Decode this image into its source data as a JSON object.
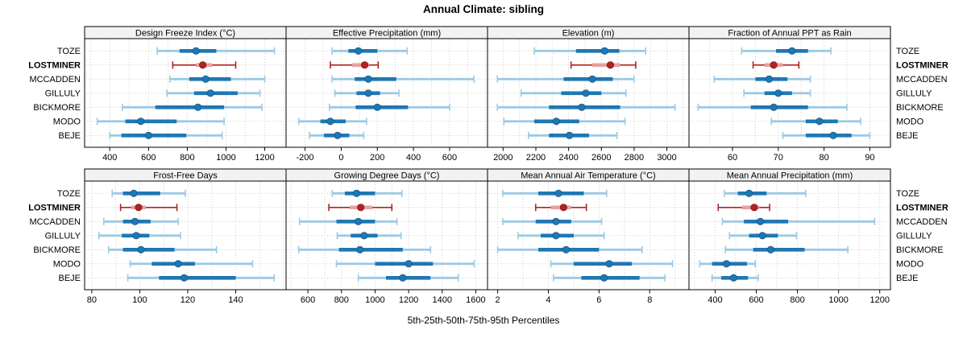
{
  "chart_data": {
    "type": "trellis-errorbar",
    "title": "Annual Climate: sibling",
    "xlabel": "5th-25th-50th-75th-95th Percentiles",
    "percentiles": [
      5,
      25,
      50,
      75,
      95
    ],
    "sites": [
      "TOZE",
      "LOSTMINER",
      "MCCADDEN",
      "GILLULY",
      "BICKMORE",
      "MODO",
      "BEJE"
    ],
    "highlight_site": "LOSTMINER",
    "grid": true,
    "layout": {
      "rows": 2,
      "cols": 4
    },
    "colors": {
      "point": "#1f77b4",
      "band": "#1f77b4",
      "whisker": "#9dc9e3",
      "point_edge": "#155a8a",
      "highlight_point": "#b22222",
      "highlight_band": "#e8a0a0",
      "highlight_whisker": "#b22222",
      "highlight_point_edge": "#7f1a1a",
      "strip_bg": "#f2f2f2",
      "grid": "#c9c9c9",
      "border": "#000000",
      "text": "#000000"
    },
    "panels": [
      {
        "title": "Design Freeze Index (°C)",
        "xlim": [
          270,
          1310
        ],
        "ticks": [
          400,
          600,
          800,
          1000,
          1200
        ],
        "values": {
          "TOZE": [
            645,
            760,
            845,
            950,
            1250
          ],
          "LOSTMINER": [
            725,
            845,
            880,
            930,
            1050
          ],
          "MCCADDEN": [
            710,
            810,
            895,
            1025,
            1200
          ],
          "GILLULY": [
            695,
            835,
            920,
            1060,
            1175
          ],
          "BICKMORE": [
            465,
            635,
            855,
            990,
            1185
          ],
          "MODO": [
            335,
            480,
            560,
            745,
            990
          ],
          "BEJE": [
            400,
            460,
            600,
            795,
            980
          ]
        }
      },
      {
        "title": "Effective Precipitation (mm)",
        "xlim": [
          -305,
          810
        ],
        "ticks": [
          -200,
          0,
          200,
          400,
          600
        ],
        "values": {
          "TOZE": [
            -50,
            40,
            95,
            200,
            365
          ],
          "LOSTMINER": [
            -60,
            60,
            130,
            155,
            205
          ],
          "MCCADDEN": [
            -50,
            75,
            150,
            305,
            735
          ],
          "GILLULY": [
            -35,
            85,
            150,
            215,
            320
          ],
          "BICKMORE": [
            -65,
            80,
            200,
            370,
            600
          ],
          "MODO": [
            -235,
            -115,
            -60,
            25,
            140
          ],
          "BEJE": [
            -175,
            -95,
            -20,
            45,
            125
          ]
        }
      },
      {
        "title": "Elevation (m)",
        "xlim": [
          1905,
          3135
        ],
        "ticks": [
          2000,
          2200,
          2400,
          2600,
          2800,
          3000
        ],
        "values": {
          "TOZE": [
            2190,
            2445,
            2620,
            2710,
            2870
          ],
          "LOSTMINER": [
            2415,
            2545,
            2655,
            2715,
            2810
          ],
          "MCCADDEN": [
            1965,
            2370,
            2545,
            2670,
            2800
          ],
          "GILLULY": [
            2110,
            2355,
            2505,
            2600,
            2750
          ],
          "BICKMORE": [
            1965,
            2280,
            2480,
            2715,
            3050
          ],
          "MODO": [
            2005,
            2190,
            2325,
            2465,
            2745
          ],
          "BEJE": [
            2155,
            2280,
            2405,
            2525,
            2695
          ]
        }
      },
      {
        "title": "Fraction of Annual PPT as Rain",
        "xlim": [
          50.5,
          94.5
        ],
        "ticks": [
          60,
          70,
          80,
          90
        ],
        "values": {
          "TOZE": [
            62,
            69.5,
            73,
            76.5,
            81.5
          ],
          "LOSTMINER": [
            64.5,
            67,
            69,
            71,
            74.5
          ],
          "MCCADDEN": [
            56,
            65,
            68,
            72,
            77
          ],
          "GILLULY": [
            62.5,
            67,
            70,
            73,
            77
          ],
          "BICKMORE": [
            52.5,
            64,
            69,
            76.5,
            85
          ],
          "MODO": [
            68.5,
            76,
            79,
            83,
            88
          ],
          "BEJE": [
            71,
            76,
            82,
            86,
            90
          ]
        }
      },
      {
        "title": "Frost-Free Days",
        "xlim": [
          77,
          161
        ],
        "ticks": [
          80,
          100,
          120,
          140
        ],
        "values": {
          "TOZE": [
            88.5,
            93,
            97.5,
            108.5,
            119
          ],
          "LOSTMINER": [
            92,
            96.5,
            99.5,
            102.5,
            115.5
          ],
          "MCCADDEN": [
            85,
            93,
            98,
            104.5,
            116
          ],
          "GILLULY": [
            83,
            92.5,
            98.5,
            104,
            117
          ],
          "BICKMORE": [
            87,
            93,
            100.5,
            114.5,
            132
          ],
          "MODO": [
            96,
            105,
            116,
            123,
            147
          ],
          "BEJE": [
            95,
            108,
            118.5,
            140,
            156
          ]
        }
      },
      {
        "title": "Growing Degree Days (°C)",
        "xlim": [
          470,
          1670
        ],
        "ticks": [
          600,
          800,
          1000,
          1200,
          1400,
          1600
        ],
        "values": {
          "TOZE": [
            745,
            820,
            890,
            1000,
            1160
          ],
          "LOSTMINER": [
            725,
            850,
            915,
            985,
            1100
          ],
          "MCCADDEN": [
            550,
            770,
            900,
            1000,
            1130
          ],
          "GILLULY": [
            775,
            855,
            935,
            1015,
            1155
          ],
          "BICKMORE": [
            545,
            785,
            910,
            1165,
            1330
          ],
          "MODO": [
            770,
            1000,
            1200,
            1345,
            1590
          ],
          "BEJE": [
            900,
            1065,
            1165,
            1330,
            1495
          ]
        }
      },
      {
        "title": "Mean Annual Air Temperature (°C)",
        "xlim": [
          1.6,
          9.55
        ],
        "ticks": [
          2,
          4,
          6,
          8
        ],
        "values": {
          "TOZE": [
            2.2,
            3.6,
            4.4,
            5.4,
            6.3
          ],
          "LOSTMINER": [
            3.5,
            4.1,
            4.6,
            4.9,
            5.5
          ],
          "MCCADDEN": [
            2.2,
            3.5,
            4.3,
            4.9,
            6.1
          ],
          "GILLULY": [
            2.8,
            3.7,
            4.3,
            5.0,
            6.2
          ],
          "BICKMORE": [
            2.0,
            3.6,
            4.7,
            6.0,
            7.7
          ],
          "MODO": [
            4.1,
            5.0,
            6.4,
            7.3,
            8.9
          ],
          "BEJE": [
            4.2,
            5.3,
            6.2,
            7.6,
            8.6
          ]
        }
      },
      {
        "title": "Mean Annual Precipitation (mm)",
        "xlim": [
          273,
          1252
        ],
        "ticks": [
          400,
          600,
          800,
          1000,
          1200
        ],
        "values": {
          "TOZE": [
            445,
            510,
            565,
            650,
            840
          ],
          "LOSTMINER": [
            415,
            530,
            590,
            615,
            665
          ],
          "MCCADDEN": [
            435,
            540,
            620,
            755,
            1175
          ],
          "GILLULY": [
            470,
            565,
            630,
            705,
            795
          ],
          "BICKMORE": [
            450,
            585,
            670,
            835,
            1045
          ],
          "MODO": [
            325,
            385,
            455,
            555,
            595
          ],
          "BEJE": [
            385,
            430,
            490,
            560,
            610
          ]
        }
      }
    ]
  }
}
